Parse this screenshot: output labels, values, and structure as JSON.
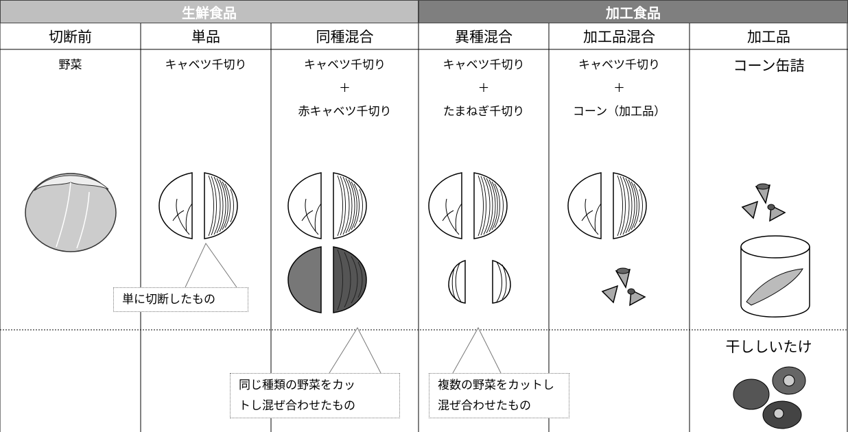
{
  "groups": [
    "生鮮食品",
    "加工食品"
  ],
  "columns": [
    "切断前",
    "単品",
    "同種混合",
    "異種混合",
    "加工品混合",
    "加工品"
  ],
  "cells": [
    [
      "野菜"
    ],
    [
      "キャベツ千切り"
    ],
    [
      "キャベツ千切り",
      "＋",
      "赤キャベツ千切り"
    ],
    [
      "キャベツ千切り",
      "＋",
      "たまねぎ千切り"
    ],
    [
      "キャベツ千切り",
      "＋",
      "コーン（加工品）"
    ],
    [
      "コーン缶詰"
    ]
  ],
  "extra_item": "干ししいたけ",
  "callouts": [
    [
      "単に切断したもの"
    ],
    [
      "同じ種類の野菜をカッ",
      "トし混ぜ合わせたもの"
    ],
    [
      "複数の野菜をカットし",
      "混ぜ合わせたもの"
    ]
  ]
}
